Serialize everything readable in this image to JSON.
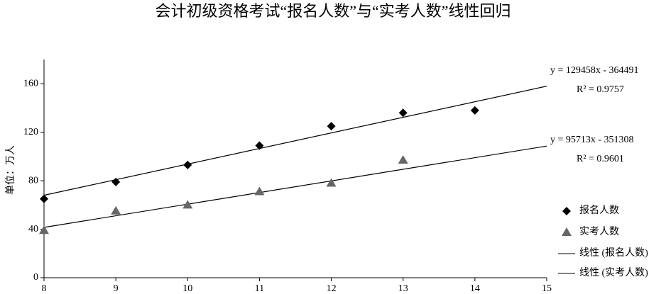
{
  "chart_data": {
    "type": "scatter",
    "title": "会计初级资格考试“报名人数”与“实考人数”线性回归",
    "y_label": "单位：万人",
    "xlim": [
      8,
      15
    ],
    "xticks": [
      8,
      9,
      10,
      11,
      12,
      13,
      14,
      15
    ],
    "ylim": [
      0,
      180
    ],
    "yticks": [
      0,
      40,
      80,
      120,
      160
    ],
    "grid": false,
    "series": [
      {
        "name": "报名人数",
        "color": "#000000",
        "marker": "diamond",
        "x": [
          8,
          9,
          10,
          11,
          12,
          13,
          14
        ],
        "values": [
          65,
          79,
          93,
          109,
          125,
          136,
          138
        ]
      },
      {
        "name": "实考人数",
        "color": "#666666",
        "marker": "triangle",
        "x": [
          8,
          9,
          10,
          11,
          12,
          13
        ],
        "values": [
          39,
          55,
          60,
          71,
          78,
          97
        ]
      }
    ],
    "trendlines": [
      {
        "name": "线性 (报名人数)",
        "color": "#000000",
        "x": [
          8,
          15
        ],
        "values": [
          68,
          158
        ],
        "equation": "y = 129458x - 364491",
        "r2": "R² = 0.9757"
      },
      {
        "name": "线性 (实考人数)",
        "color": "#000000",
        "x": [
          8,
          15
        ],
        "values": [
          41.5,
          108.6
        ],
        "equation": "y = 95713x - 351308",
        "r2": "R² = 0.9601"
      }
    ]
  }
}
